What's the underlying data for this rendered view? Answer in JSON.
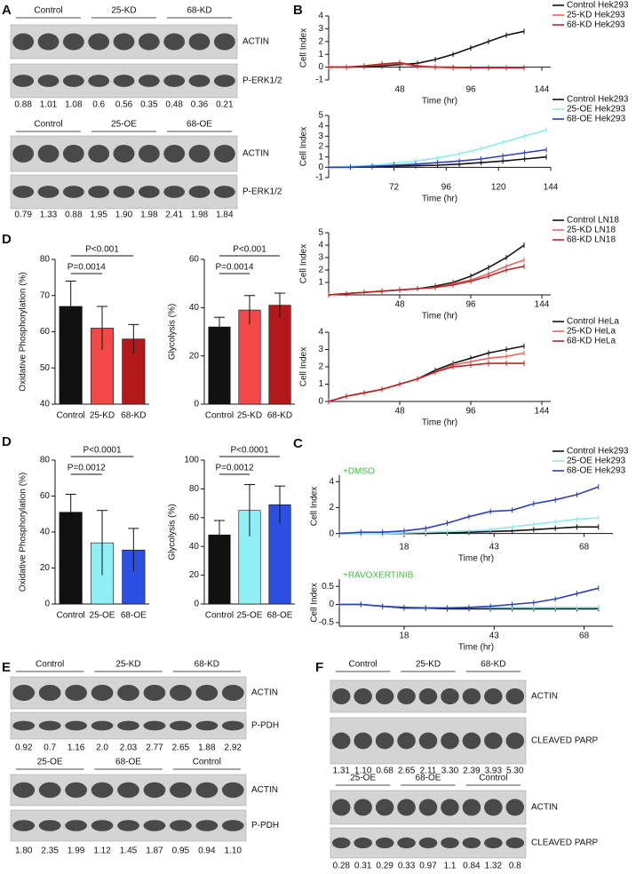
{
  "panel_labels": [
    "A",
    "B",
    "D",
    "C",
    "D",
    "E",
    "F"
  ],
  "blots": [
    {
      "groups": [
        "Control",
        "25-KD",
        "68-KD"
      ],
      "rows": [
        "ACTIN",
        "P-ERK1/2"
      ],
      "quant": [
        "0.88",
        "1.01",
        "1.08",
        "0.6",
        "0.56",
        "0.35",
        "0.48",
        "0.36",
        "0.21"
      ]
    },
    {
      "groups": [
        "Control",
        "25-OE",
        "68-OE"
      ],
      "rows": [
        "ACTIN",
        "P-ERK1/2"
      ],
      "quant": [
        "0.79",
        "1.33",
        "0.88",
        "1.95",
        "1.90",
        "1.98",
        "2.41",
        "1.98",
        "1.84"
      ]
    },
    {
      "groups": [
        "Control",
        "25-KD",
        "68-KD"
      ],
      "rows": [
        "ACTIN",
        "P-PDH"
      ],
      "quant": [
        "0.92",
        "0.7",
        "1.16",
        "2.0",
        "2.03",
        "2.77",
        "2.65",
        "1.88",
        "2.92"
      ]
    },
    {
      "groups": [
        "25-OE",
        "68-OE",
        "Control"
      ],
      "rows": [
        "ACTIN",
        "P-PDH"
      ],
      "quant": [
        "1.80",
        "2.35",
        "1.99",
        "1.12",
        "1.45",
        "1.87",
        "0.95",
        "0.94",
        "1.10"
      ]
    },
    {
      "groups": [
        "Control",
        "25-KD",
        "68-KD"
      ],
      "rows": [
        "ACTIN",
        "CLEAVED PARP"
      ],
      "quant": [
        "1.31",
        "1.10",
        "0.68",
        "2.65",
        "2.11",
        "3.30",
        "2.39",
        "3.93",
        "5.30"
      ]
    },
    {
      "groups": [
        "25-OE",
        "68-OE",
        "Control"
      ],
      "rows": [
        "ACTIN",
        "CLEAVED PARP"
      ],
      "quant": [
        "0.28",
        "0.31",
        "0.29",
        "0.33",
        "0.97",
        "1.1",
        "0.84",
        "1.32",
        "0.8"
      ]
    }
  ],
  "chart_data": [
    {
      "type": "line",
      "x_label": "Time (hr)",
      "y_label": "Cell Index",
      "x_axis_at_zero": true,
      "x": [
        0,
        12,
        24,
        36,
        48,
        60,
        72,
        84,
        96,
        108,
        120,
        132
      ],
      "xlim": [
        0,
        150
      ],
      "xticks": [
        48,
        96,
        144
      ],
      "ylim": [
        -1,
        4
      ],
      "yticks": [
        -1,
        0,
        1,
        2,
        3,
        4
      ],
      "series": [
        {
          "name": "Control Hek293",
          "color": "#111111",
          "values": [
            0,
            0,
            0.05,
            0.1,
            0.2,
            0.3,
            0.6,
            1.0,
            1.5,
            2.0,
            2.5,
            2.8
          ]
        },
        {
          "name": "25-KD  Hek293",
          "color": "#e8645a",
          "values": [
            0,
            0,
            0.1,
            0.2,
            0.3,
            0.05,
            0,
            -0.05,
            -0.05,
            -0.05,
            -0.05,
            -0.05
          ]
        },
        {
          "name": "68-KD  Hek293",
          "color": "#b82828",
          "values": [
            0,
            0,
            0.1,
            0.25,
            0.35,
            0.1,
            0,
            0,
            -0.05,
            -0.05,
            -0.05,
            -0.05
          ]
        }
      ]
    },
    {
      "type": "line",
      "x_label": "Time (hr)",
      "y_label": "Cell Index",
      "x_axis_at_zero": true,
      "x": [
        42,
        52,
        62,
        72,
        82,
        92,
        102,
        112,
        122,
        132,
        142
      ],
      "xlim": [
        42,
        144
      ],
      "xticks": [
        72,
        96,
        120,
        144
      ],
      "ylim": [
        -1,
        5
      ],
      "yticks": [
        -1,
        0,
        1,
        2,
        3,
        4,
        5
      ],
      "series": [
        {
          "name": "Control Hek293",
          "color": "#111111",
          "values": [
            0,
            0,
            0.05,
            0.1,
            0.15,
            0.2,
            0.3,
            0.45,
            0.6,
            0.8,
            1.0
          ]
        },
        {
          "name": "25-OE  Hek293",
          "color": "#8eeaf0",
          "values": [
            0,
            0.1,
            0.2,
            0.4,
            0.6,
            0.9,
            1.3,
            1.8,
            2.4,
            3.0,
            3.6
          ]
        },
        {
          "name": "68-OE  Hek293",
          "color": "#2e3fb8",
          "values": [
            0,
            0,
            0.1,
            0.2,
            0.3,
            0.45,
            0.6,
            0.8,
            1.1,
            1.4,
            1.7
          ]
        }
      ]
    },
    {
      "type": "line",
      "x_label": "Time (hr)",
      "y_label": "Cell Index",
      "x_axis_at_zero": false,
      "x": [
        0,
        12,
        24,
        36,
        48,
        60,
        72,
        84,
        96,
        108,
        120,
        132
      ],
      "xlim": [
        0,
        150
      ],
      "xticks": [
        48,
        96,
        144
      ],
      "ylim": [
        0,
        5
      ],
      "yticks": [
        1,
        2,
        3,
        4,
        5
      ],
      "series": [
        {
          "name": "Control LN18",
          "color": "#111111",
          "values": [
            0,
            0.1,
            0.2,
            0.3,
            0.4,
            0.5,
            0.7,
            1.0,
            1.5,
            2.2,
            3.0,
            4.0
          ]
        },
        {
          "name": "25-KD  LN18",
          "color": "#e8645a",
          "values": [
            0,
            0.1,
            0.2,
            0.3,
            0.4,
            0.5,
            0.6,
            0.9,
            1.2,
            1.7,
            2.3,
            2.8
          ]
        },
        {
          "name": "68-KD  LN18",
          "color": "#b82828",
          "values": [
            0,
            0.1,
            0.2,
            0.3,
            0.4,
            0.5,
            0.6,
            0.8,
            1.1,
            1.5,
            2.0,
            2.3
          ]
        }
      ]
    },
    {
      "type": "line",
      "x_label": "Time (hr)",
      "y_label": "Cell Index",
      "x_axis_at_zero": false,
      "x": [
        0,
        12,
        24,
        36,
        48,
        60,
        72,
        84,
        96,
        108,
        120,
        132
      ],
      "xlim": [
        0,
        150
      ],
      "xticks": [
        48,
        96,
        144
      ],
      "ylim": [
        0,
        4
      ],
      "yticks": [
        0,
        1,
        2,
        3,
        4
      ],
      "series": [
        {
          "name": "Control HeLa",
          "color": "#111111",
          "values": [
            0,
            0.3,
            0.5,
            0.7,
            1.0,
            1.3,
            1.8,
            2.2,
            2.5,
            2.8,
            3.0,
            3.2
          ]
        },
        {
          "name": "25-KD  HeLa",
          "color": "#e8645a",
          "values": [
            0,
            0.3,
            0.5,
            0.7,
            1.0,
            1.3,
            1.7,
            2.1,
            2.3,
            2.5,
            2.6,
            2.8
          ]
        },
        {
          "name": "68-KD  HeLa",
          "color": "#b82828",
          "values": [
            0,
            0.3,
            0.5,
            0.7,
            1.0,
            1.3,
            1.7,
            2.0,
            2.1,
            2.2,
            2.2,
            2.2
          ]
        }
      ]
    },
    {
      "type": "line",
      "x_label": "Time (hr)",
      "y_label": "Cell Index",
      "annotation": "+DMSO",
      "x_axis_at_zero": true,
      "x": [
        0,
        6,
        12,
        18,
        24,
        30,
        36,
        42,
        48,
        54,
        60,
        66,
        72
      ],
      "xlim": [
        0,
        76
      ],
      "xticks": [
        18,
        43,
        68
      ],
      "ylim": [
        -0.3,
        4.5
      ],
      "yticks": [
        0,
        2,
        4
      ],
      "series": [
        {
          "name": "Control Hek293",
          "color": "#111111",
          "values": [
            0,
            0,
            0,
            0,
            0,
            0.05,
            0.1,
            0.15,
            0.2,
            0.3,
            0.4,
            0.5,
            0.5
          ]
        },
        {
          "name": "25-OE  Hek293",
          "color": "#8eeaf0",
          "values": [
            0,
            0,
            0,
            0.05,
            0.1,
            0.15,
            0.2,
            0.3,
            0.5,
            0.7,
            0.9,
            1.1,
            1.2
          ]
        },
        {
          "name": "68-OE  Hek293",
          "color": "#2e3fb8",
          "values": [
            0,
            0.1,
            0.1,
            0.2,
            0.4,
            0.8,
            1.3,
            1.7,
            1.8,
            2.3,
            2.6,
            3.0,
            3.6
          ]
        }
      ]
    },
    {
      "type": "line",
      "x_label": "Time (hr)",
      "y_label": "Cell Index",
      "annotation": "+RAVOXERTINIB",
      "x_axis_at_zero": false,
      "x": [
        0,
        6,
        12,
        18,
        24,
        30,
        36,
        42,
        48,
        54,
        60,
        66,
        72
      ],
      "xlim": [
        0,
        76
      ],
      "xticks": [
        18,
        43,
        68
      ],
      "ylim": [
        -0.6,
        0.7
      ],
      "yticks": [
        -0.5,
        0,
        0.5
      ],
      "series": [
        {
          "color": "#111111",
          "values": [
            0,
            0,
            -0.05,
            -0.1,
            -0.1,
            -0.12,
            -0.12,
            -0.12,
            -0.12,
            -0.12,
            -0.12,
            -0.12,
            -0.12
          ]
        },
        {
          "color": "#8eeaf0",
          "values": [
            0,
            0,
            -0.05,
            -0.08,
            -0.08,
            -0.08,
            -0.08,
            -0.08,
            -0.08,
            -0.08,
            -0.08,
            -0.08,
            -0.08
          ]
        },
        {
          "color": "#2e3fb8",
          "values": [
            0,
            0,
            -0.05,
            -0.08,
            -0.1,
            -0.1,
            -0.08,
            -0.05,
            0,
            0.05,
            0.15,
            0.3,
            0.45
          ]
        }
      ]
    },
    {
      "type": "bar",
      "y_label": "Oxidative Phosphorylation (%)",
      "categories": [
        "Control",
        "25-KD",
        "68-KD"
      ],
      "values": [
        67,
        61,
        58
      ],
      "errors": [
        7,
        6,
        4
      ],
      "colors": [
        "#111111",
        "#f24848",
        "#b3181a"
      ],
      "ylim": [
        40,
        80
      ],
      "yticks": [
        40,
        50,
        60,
        70,
        80
      ],
      "annotations": [
        "P=0.0014",
        "P<0.001"
      ]
    },
    {
      "type": "bar",
      "y_label": "Glycolysis (%)",
      "categories": [
        "Control",
        "25-KD",
        "68-KD"
      ],
      "values": [
        32,
        39,
        41
      ],
      "errors": [
        4,
        6,
        5
      ],
      "colors": [
        "#111111",
        "#f24848",
        "#b3181a"
      ],
      "ylim": [
        0,
        60
      ],
      "yticks": [
        0,
        20,
        40,
        60
      ],
      "annotations": [
        "P=0.0014",
        "P<0.001"
      ]
    },
    {
      "type": "bar",
      "y_label": "Oxidative Phosphorylation (%)",
      "categories": [
        "Control",
        "25-OE",
        "68-OE"
      ],
      "values": [
        51,
        34,
        30
      ],
      "errors": [
        10,
        18,
        12
      ],
      "colors": [
        "#111111",
        "#8ef0f5",
        "#2b4fe0"
      ],
      "ylim": [
        0,
        80
      ],
      "yticks": [
        0,
        20,
        40,
        60,
        80
      ],
      "annotations": [
        "P=0.0012",
        "P<0.0001"
      ]
    },
    {
      "type": "bar",
      "y_label": "Glycolysis (%)",
      "categories": [
        "Control",
        "25-OE",
        "68-OE"
      ],
      "values": [
        48,
        65,
        69
      ],
      "errors": [
        10,
        18,
        13
      ],
      "colors": [
        "#111111",
        "#8ef0f5",
        "#2b4fe0"
      ],
      "ylim": [
        0,
        100
      ],
      "yticks": [
        0,
        20,
        40,
        60,
        80,
        100
      ],
      "annotations": [
        "P=0.0012",
        "P<0.0001"
      ]
    }
  ]
}
